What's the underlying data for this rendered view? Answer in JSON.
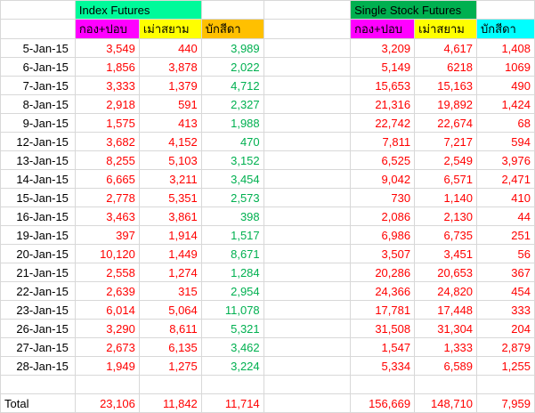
{
  "sheet": {
    "groups": [
      {
        "label": "Index Futures",
        "bg": "#00FA9A"
      },
      {
        "label": "Single Stock Futures",
        "bg": "#00B050"
      }
    ],
    "columns": [
      {
        "label": "กอง+ปอบ",
        "bg": "#FF00FF",
        "text_color": "#FF0000"
      },
      {
        "label": "เม่าสยาม",
        "bg": "#FFFF00",
        "text_color": "#FF0000"
      },
      {
        "label": "บักสีดา",
        "bg": "#FFC000",
        "text_color": "#00B050"
      },
      {
        "label": "กอง+ปอบ",
        "bg": "#FF00FF",
        "text_color": "#FF0000"
      },
      {
        "label": "เม่าสยาม",
        "bg": "#FFFF00",
        "text_color": "#FF0000"
      },
      {
        "label": "บักสีดา",
        "bg": "#00FFFF",
        "text_color": "#FF0000"
      }
    ],
    "rows": [
      {
        "date": "5-Jan-15",
        "values": [
          "3,549",
          "440",
          "3,989",
          "3,209",
          "4,617",
          "1,408"
        ]
      },
      {
        "date": "6-Jan-15",
        "values": [
          "1,856",
          "3,878",
          "2,022",
          "5,149",
          "6218",
          "1069"
        ]
      },
      {
        "date": "7-Jan-15",
        "values": [
          "3,333",
          "1,379",
          "4,712",
          "15,653",
          "15,163",
          "490"
        ]
      },
      {
        "date": "8-Jan-15",
        "values": [
          "2,918",
          "591",
          "2,327",
          "21,316",
          "19,892",
          "1,424"
        ]
      },
      {
        "date": "9-Jan-15",
        "values": [
          "1,575",
          "413",
          "1,988",
          "22,742",
          "22,674",
          "68"
        ]
      },
      {
        "date": "12-Jan-15",
        "values": [
          "3,682",
          "4,152",
          "470",
          "7,811",
          "7,217",
          "594"
        ]
      },
      {
        "date": "13-Jan-15",
        "values": [
          "8,255",
          "5,103",
          "3,152",
          "6,525",
          "2,549",
          "3,976"
        ]
      },
      {
        "date": "14-Jan-15",
        "values": [
          "6,665",
          "3,211",
          "3,454",
          "9,042",
          "6,571",
          "2,471"
        ]
      },
      {
        "date": "15-Jan-15",
        "values": [
          "2,778",
          "5,351",
          "2,573",
          "730",
          "1,140",
          "410"
        ]
      },
      {
        "date": "16-Jan-15",
        "values": [
          "3,463",
          "3,861",
          "398",
          "2,086",
          "2,130",
          "44"
        ]
      },
      {
        "date": "19-Jan-15",
        "values": [
          "397",
          "1,914",
          "1,517",
          "6,986",
          "6,735",
          "251"
        ]
      },
      {
        "date": "20-Jan-15",
        "values": [
          "10,120",
          "1,449",
          "8,671",
          "3,507",
          "3,451",
          "56"
        ]
      },
      {
        "date": "21-Jan-15",
        "values": [
          "2,558",
          "1,274",
          "1,284",
          "20,286",
          "20,653",
          "367"
        ]
      },
      {
        "date": "22-Jan-15",
        "values": [
          "2,639",
          "315",
          "2,954",
          "24,366",
          "24,820",
          "454"
        ]
      },
      {
        "date": "23-Jan-15",
        "values": [
          "6,014",
          "5,064",
          "11,078",
          "17,781",
          "17,448",
          "333"
        ]
      },
      {
        "date": "26-Jan-15",
        "values": [
          "3,290",
          "8,611",
          "5,321",
          "31,508",
          "31,304",
          "204"
        ]
      },
      {
        "date": "27-Jan-15",
        "values": [
          "2,673",
          "6,135",
          "3,462",
          "1,547",
          "1,333",
          "2,879"
        ]
      },
      {
        "date": "28-Jan-15",
        "values": [
          "1,949",
          "1,275",
          "3,224",
          "5,334",
          "6,589",
          "1,255"
        ]
      }
    ],
    "total": {
      "label": "Total",
      "values": [
        "23,106",
        "11,842",
        "11,714",
        "156,669",
        "148,710",
        "7,959"
      ],
      "text_color": "#FF0000"
    }
  }
}
